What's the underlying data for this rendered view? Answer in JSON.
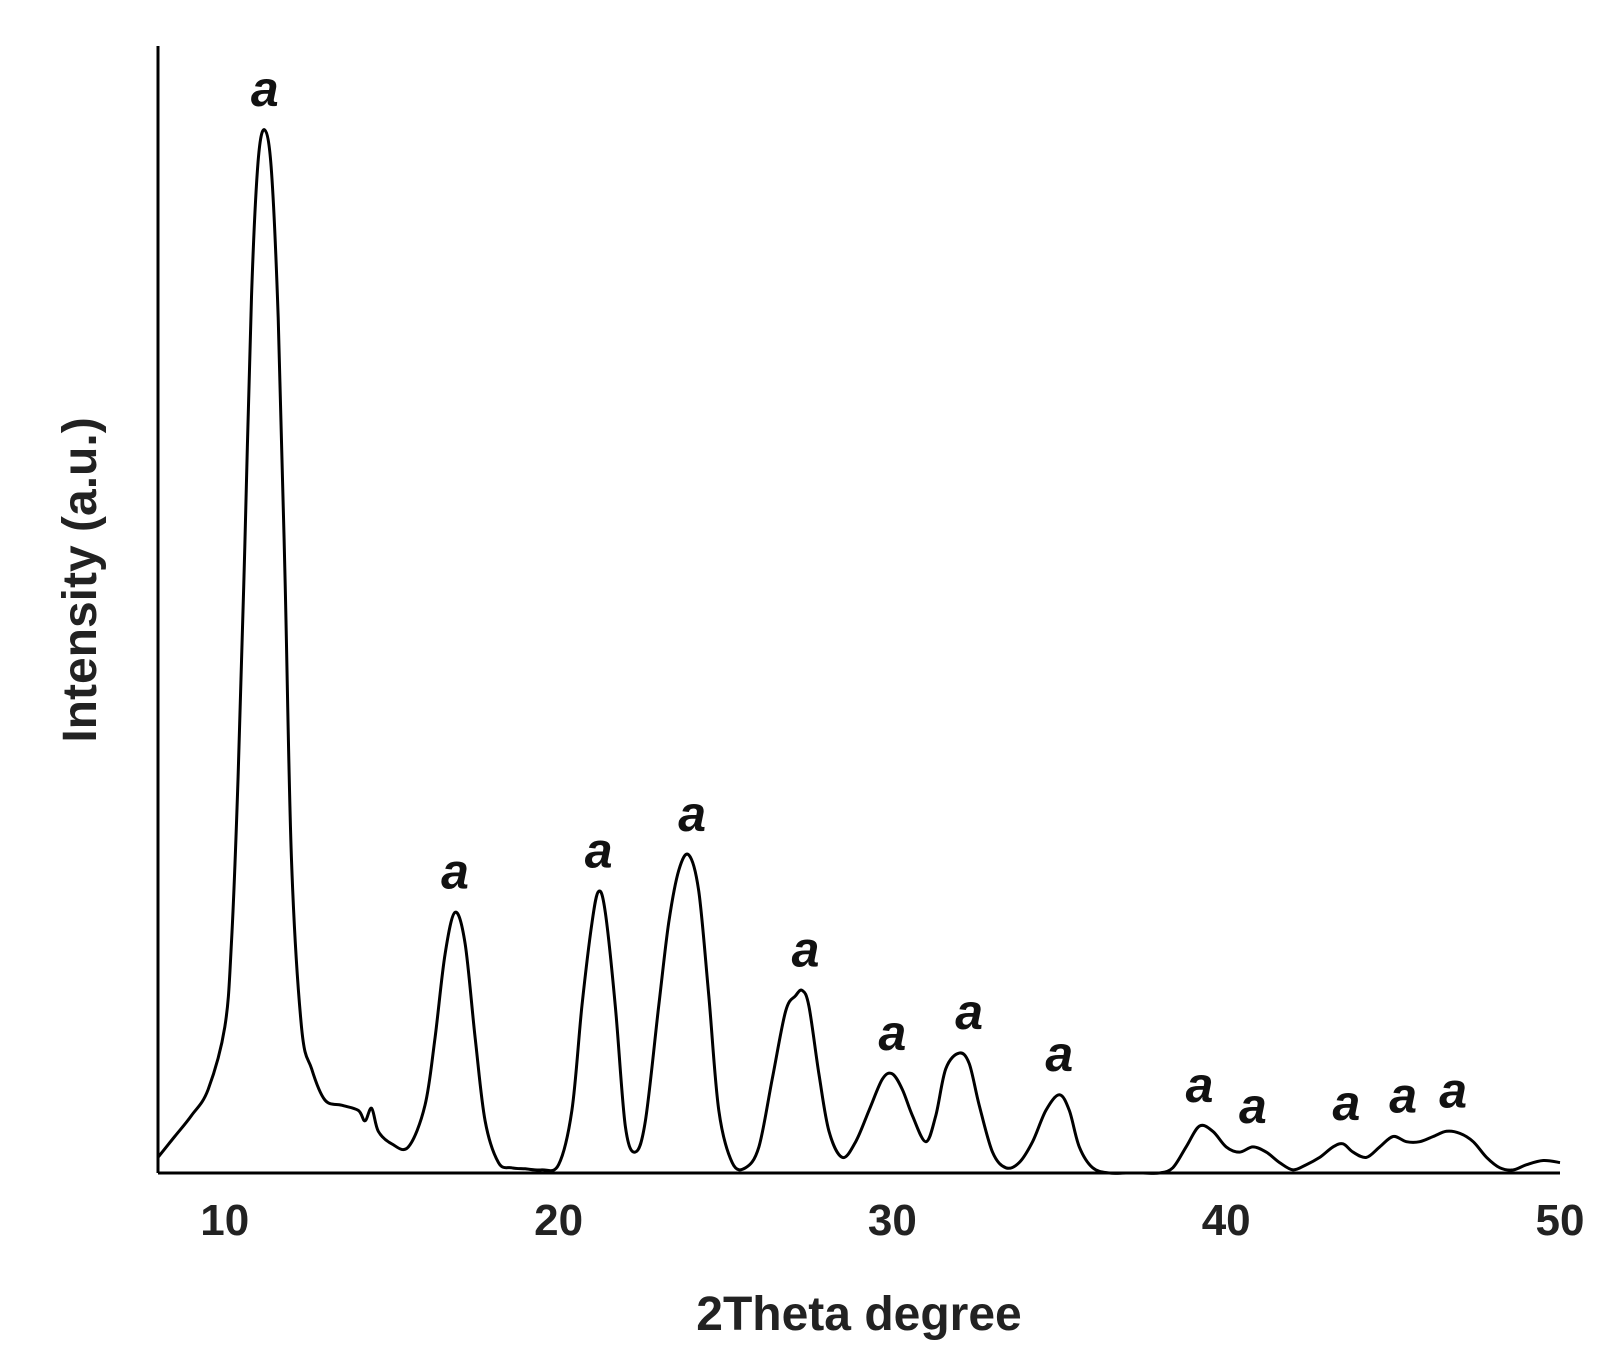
{
  "chart_data": {
    "type": "line",
    "title": "",
    "xlabel": "2Theta degree",
    "ylabel": "Intensity (a.u.)",
    "xlim": [
      8,
      50
    ],
    "ylim": [
      0,
      100
    ],
    "x_ticks": [
      10,
      20,
      30,
      40,
      50
    ],
    "x_tick_labels": [
      "10",
      "20",
      "30",
      "40",
      "50"
    ],
    "y_ticks_shown": false,
    "grid": false,
    "series": [
      {
        "color": "#000000",
        "x": [
          8.0,
          8.5,
          9.0,
          9.5,
          10.0,
          10.2,
          10.4,
          10.6,
          10.8,
          11.0,
          11.2,
          11.4,
          11.6,
          11.8,
          12.0,
          12.3,
          12.6,
          13.0,
          13.5,
          14.0,
          14.2,
          14.4,
          14.6,
          15.0,
          15.5,
          16.0,
          16.3,
          16.6,
          16.9,
          17.2,
          17.5,
          17.8,
          18.2,
          18.6,
          19.0,
          19.5,
          20.0,
          20.4,
          20.7,
          21.0,
          21.2,
          21.4,
          21.7,
          22.0,
          22.3,
          22.6,
          23.0,
          23.3,
          23.6,
          23.9,
          24.2,
          24.5,
          24.8,
          25.2,
          25.6,
          26.0,
          26.4,
          26.8,
          27.1,
          27.3,
          27.5,
          27.8,
          28.1,
          28.5,
          28.9,
          29.3,
          29.7,
          30.0,
          30.3,
          30.6,
          31.0,
          31.3,
          31.6,
          32.0,
          32.3,
          32.6,
          33.0,
          33.4,
          33.8,
          34.2,
          34.6,
          35.0,
          35.3,
          35.6,
          36.0,
          36.5,
          37.0,
          37.5,
          38.0,
          38.4,
          38.8,
          39.2,
          39.6,
          40.0,
          40.4,
          40.8,
          41.2,
          41.6,
          42.0,
          42.4,
          42.8,
          43.2,
          43.5,
          43.8,
          44.2,
          44.6,
          45.0,
          45.4,
          45.8,
          46.2,
          46.6,
          47.0,
          47.4,
          47.8,
          48.2,
          48.6,
          49.0,
          49.5,
          50.0
        ],
        "y": [
          1.5,
          3.5,
          5.5,
          8.0,
          14.0,
          22.0,
          38.0,
          60.0,
          84.0,
          97.0,
          100.0,
          96.0,
          82.0,
          58.0,
          30.0,
          14.0,
          10.0,
          7.0,
          6.5,
          6.0,
          5.0,
          6.2,
          4.0,
          2.8,
          2.5,
          6.5,
          13.0,
          21.0,
          25.0,
          22.0,
          13.0,
          5.0,
          1.0,
          0.5,
          0.4,
          0.3,
          0.8,
          6.0,
          16.0,
          24.0,
          27.0,
          25.0,
          16.0,
          4.5,
          2.0,
          5.0,
          16.0,
          24.0,
          29.0,
          30.5,
          27.0,
          17.0,
          6.0,
          1.0,
          0.5,
          2.5,
          9.0,
          15.5,
          17.0,
          17.5,
          16.0,
          9.5,
          4.0,
          1.5,
          3.0,
          6.0,
          9.0,
          9.5,
          8.0,
          5.5,
          3.0,
          5.5,
          10.0,
          11.5,
          10.5,
          6.5,
          2.0,
          0.5,
          1.0,
          3.0,
          6.0,
          7.5,
          6.0,
          2.5,
          0.5,
          0.0,
          0.0,
          0.0,
          0.0,
          0.5,
          2.5,
          4.5,
          4.0,
          2.5,
          2.0,
          2.5,
          2.0,
          1.0,
          0.3,
          0.8,
          1.5,
          2.5,
          2.8,
          2.0,
          1.5,
          2.5,
          3.5,
          3.0,
          3.0,
          3.5,
          4.0,
          3.8,
          3.0,
          1.5,
          0.5,
          0.3,
          0.8,
          1.2,
          1.0
        ],
        "name": ""
      }
    ],
    "annotations": [
      {
        "text": "a",
        "x": 11.2,
        "y": 100.0
      },
      {
        "text": "a",
        "x": 16.9,
        "y": 25.0
      },
      {
        "text": "a",
        "x": 21.2,
        "y": 27.0
      },
      {
        "text": "a",
        "x": 24.0,
        "y": 30.5
      },
      {
        "text": "a",
        "x": 27.4,
        "y": 17.5
      },
      {
        "text": "a",
        "x": 30.0,
        "y": 9.5
      },
      {
        "text": "a",
        "x": 32.3,
        "y": 11.5
      },
      {
        "text": "a",
        "x": 35.0,
        "y": 7.5
      },
      {
        "text": "a",
        "x": 39.2,
        "y": 4.5
      },
      {
        "text": "a",
        "x": 40.8,
        "y": 2.5
      },
      {
        "text": "a",
        "x": 43.6,
        "y": 2.8
      },
      {
        "text": "a",
        "x": 45.3,
        "y": 3.5
      },
      {
        "text": "a",
        "x": 46.8,
        "y": 4.0
      }
    ]
  }
}
